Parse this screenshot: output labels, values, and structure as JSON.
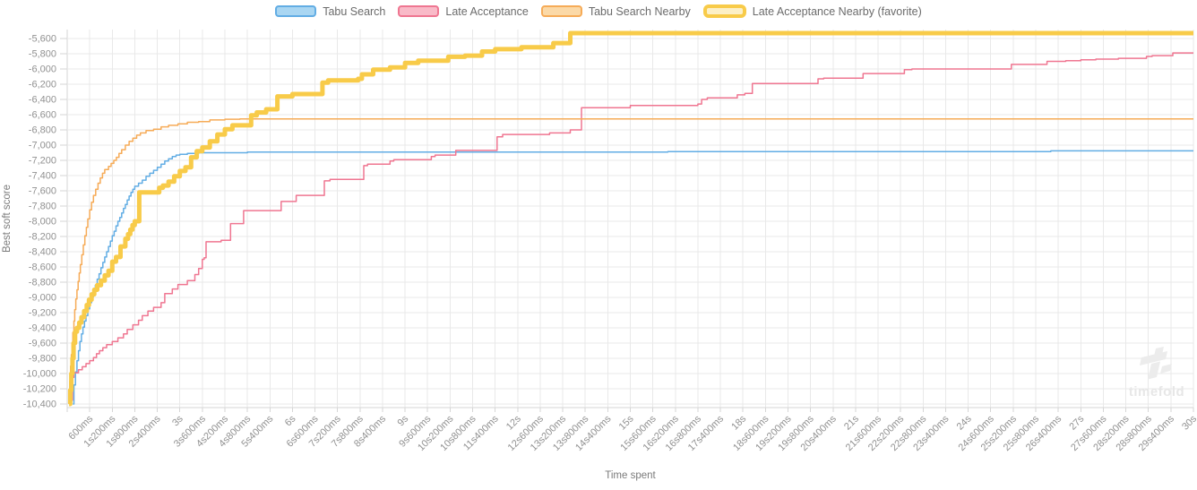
{
  "watermark": {
    "text": "timefold"
  },
  "colors": {
    "grid": "#e9e9e9",
    "axis": "#d6d6d6",
    "tick_label": "#919191",
    "axis_title": "#7a7a7a",
    "legend_text": "#6b6b6b",
    "watermark": "#ececec"
  },
  "chart_data": {
    "type": "line",
    "step": true,
    "title": "",
    "xlabel": "Time spent",
    "ylabel": "Best soft score",
    "xlim_seconds": [
      0,
      30
    ],
    "ylim": [
      -10400,
      -5600
    ],
    "y_tick_step": 200,
    "x_tick_step_seconds": 0.6,
    "grid": true,
    "legend_position": "top",
    "x_tick_labels": [
      "600ms",
      "1s200ms",
      "1s800ms",
      "2s400ms",
      "3s",
      "3s600ms",
      "4s200ms",
      "4s800ms",
      "5s400ms",
      "6s",
      "6s600ms",
      "7s200ms",
      "7s800ms",
      "8s400ms",
      "9s",
      "9s600ms",
      "10s200ms",
      "10s800ms",
      "11s400ms",
      "12s",
      "12s600ms",
      "13s200ms",
      "13s800ms",
      "14s400ms",
      "15s",
      "15s600ms",
      "16s200ms",
      "16s800ms",
      "17s400ms",
      "18s",
      "18s600ms",
      "19s200ms",
      "19s800ms",
      "20s400ms",
      "21s",
      "21s600ms",
      "22s200ms",
      "22s800ms",
      "23s400ms",
      "24s",
      "24s600ms",
      "25s200ms",
      "25s800ms",
      "26s400ms",
      "27s",
      "27s600ms",
      "28s200ms",
      "28s800ms",
      "29s400ms",
      "30s"
    ],
    "series": [
      {
        "name": "Tabu Search",
        "slug": "tabu-search",
        "color": "#62ade4",
        "fill": "#a9d6f2",
        "line_width": 1.5,
        "favorite": false,
        "points": [
          [
            0.15,
            -10400
          ],
          [
            0.18,
            -10150
          ],
          [
            0.22,
            -9980
          ],
          [
            0.26,
            -9830
          ],
          [
            0.3,
            -9700
          ],
          [
            0.34,
            -9580
          ],
          [
            0.38,
            -9480
          ],
          [
            0.42,
            -9390
          ],
          [
            0.46,
            -9310
          ],
          [
            0.5,
            -9240
          ],
          [
            0.55,
            -9150
          ],
          [
            0.6,
            -9070
          ],
          [
            0.65,
            -8990
          ],
          [
            0.7,
            -8910
          ],
          [
            0.75,
            -8840
          ],
          [
            0.8,
            -8760
          ],
          [
            0.85,
            -8690
          ],
          [
            0.9,
            -8610
          ],
          [
            0.95,
            -8540
          ],
          [
            1.0,
            -8470
          ],
          [
            1.05,
            -8400
          ],
          [
            1.1,
            -8330
          ],
          [
            1.15,
            -8260
          ],
          [
            1.2,
            -8190
          ],
          [
            1.25,
            -8130
          ],
          [
            1.3,
            -8060
          ],
          [
            1.35,
            -8000
          ],
          [
            1.4,
            -7950
          ],
          [
            1.45,
            -7890
          ],
          [
            1.5,
            -7830
          ],
          [
            1.55,
            -7780
          ],
          [
            1.6,
            -7720
          ],
          [
            1.65,
            -7670
          ],
          [
            1.7,
            -7620
          ],
          [
            1.75,
            -7580
          ],
          [
            1.8,
            -7540
          ],
          [
            1.9,
            -7500
          ],
          [
            2.0,
            -7460
          ],
          [
            2.1,
            -7410
          ],
          [
            2.2,
            -7370
          ],
          [
            2.3,
            -7330
          ],
          [
            2.4,
            -7290
          ],
          [
            2.5,
            -7250
          ],
          [
            2.6,
            -7210
          ],
          [
            2.7,
            -7180
          ],
          [
            2.8,
            -7150
          ],
          [
            2.9,
            -7130
          ],
          [
            3.0,
            -7120
          ],
          [
            3.2,
            -7110
          ],
          [
            3.5,
            -7100
          ],
          [
            4.8,
            -7090
          ],
          [
            16.0,
            -7085
          ],
          [
            26.2,
            -7075
          ]
        ]
      },
      {
        "name": "Late Acceptance",
        "slug": "late-acceptance",
        "color": "#ef7691",
        "fill": "#f9bac8",
        "line_width": 1.5,
        "favorite": false,
        "points": [
          [
            0.1,
            -10350
          ],
          [
            0.14,
            -10050
          ],
          [
            0.18,
            -9990
          ],
          [
            0.3,
            -9950
          ],
          [
            0.4,
            -9910
          ],
          [
            0.5,
            -9870
          ],
          [
            0.6,
            -9830
          ],
          [
            0.7,
            -9790
          ],
          [
            0.78,
            -9740
          ],
          [
            0.86,
            -9700
          ],
          [
            0.95,
            -9660
          ],
          [
            1.05,
            -9620
          ],
          [
            1.2,
            -9580
          ],
          [
            1.35,
            -9530
          ],
          [
            1.5,
            -9480
          ],
          [
            1.6,
            -9420
          ],
          [
            1.75,
            -9360
          ],
          [
            1.9,
            -9300
          ],
          [
            2.0,
            -9240
          ],
          [
            2.15,
            -9180
          ],
          [
            2.3,
            -9130
          ],
          [
            2.5,
            -9070
          ],
          [
            2.6,
            -8950
          ],
          [
            2.8,
            -8890
          ],
          [
            2.95,
            -8830
          ],
          [
            3.2,
            -8780
          ],
          [
            3.4,
            -8700
          ],
          [
            3.5,
            -8620
          ],
          [
            3.6,
            -8500
          ],
          [
            3.65,
            -8480
          ],
          [
            3.7,
            -8270
          ],
          [
            4.1,
            -8250
          ],
          [
            4.35,
            -8030
          ],
          [
            4.7,
            -7860
          ],
          [
            5.7,
            -7740
          ],
          [
            6.1,
            -7660
          ],
          [
            6.85,
            -7470
          ],
          [
            7.0,
            -7450
          ],
          [
            7.9,
            -7270
          ],
          [
            8.0,
            -7250
          ],
          [
            8.6,
            -7210
          ],
          [
            8.7,
            -7190
          ],
          [
            9.7,
            -7150
          ],
          [
            9.8,
            -7130
          ],
          [
            10.35,
            -7070
          ],
          [
            11.45,
            -6890
          ],
          [
            11.6,
            -6860
          ],
          [
            12.85,
            -6840
          ],
          [
            13.4,
            -6800
          ],
          [
            13.7,
            -6510
          ],
          [
            15.0,
            -6480
          ],
          [
            16.8,
            -6460
          ],
          [
            16.9,
            -6400
          ],
          [
            17.05,
            -6380
          ],
          [
            17.85,
            -6340
          ],
          [
            18.05,
            -6320
          ],
          [
            18.25,
            -6190
          ],
          [
            20.0,
            -6130
          ],
          [
            20.15,
            -6120
          ],
          [
            21.2,
            -6060
          ],
          [
            22.3,
            -6010
          ],
          [
            22.5,
            -6000
          ],
          [
            25.15,
            -5940
          ],
          [
            26.1,
            -5900
          ],
          [
            26.6,
            -5890
          ],
          [
            27.0,
            -5880
          ],
          [
            27.4,
            -5870
          ],
          [
            28.0,
            -5860
          ],
          [
            28.75,
            -5835
          ],
          [
            28.9,
            -5825
          ],
          [
            29.45,
            -5790
          ]
        ]
      },
      {
        "name": "Tabu Search Nearby",
        "slug": "tabu-search-nearby",
        "color": "#f6ab57",
        "fill": "#fbd9a7",
        "line_width": 1.5,
        "favorite": false,
        "points": [
          [
            0.05,
            -10350
          ],
          [
            0.07,
            -10100
          ],
          [
            0.09,
            -9900
          ],
          [
            0.11,
            -9750
          ],
          [
            0.13,
            -9600
          ],
          [
            0.15,
            -9460
          ],
          [
            0.18,
            -9310
          ],
          [
            0.2,
            -9160
          ],
          [
            0.23,
            -9020
          ],
          [
            0.26,
            -8900
          ],
          [
            0.29,
            -8790
          ],
          [
            0.32,
            -8680
          ],
          [
            0.35,
            -8570
          ],
          [
            0.39,
            -8440
          ],
          [
            0.43,
            -8310
          ],
          [
            0.47,
            -8190
          ],
          [
            0.51,
            -8080
          ],
          [
            0.55,
            -7970
          ],
          [
            0.6,
            -7850
          ],
          [
            0.65,
            -7750
          ],
          [
            0.7,
            -7660
          ],
          [
            0.76,
            -7580
          ],
          [
            0.82,
            -7500
          ],
          [
            0.88,
            -7430
          ],
          [
            0.94,
            -7370
          ],
          [
            1.0,
            -7320
          ],
          [
            1.1,
            -7280
          ],
          [
            1.17,
            -7240
          ],
          [
            1.24,
            -7200
          ],
          [
            1.31,
            -7160
          ],
          [
            1.38,
            -7110
          ],
          [
            1.45,
            -7060
          ],
          [
            1.55,
            -7000
          ],
          [
            1.65,
            -6950
          ],
          [
            1.75,
            -6910
          ],
          [
            1.85,
            -6870
          ],
          [
            1.95,
            -6840
          ],
          [
            2.1,
            -6810
          ],
          [
            2.3,
            -6790
          ],
          [
            2.5,
            -6760
          ],
          [
            2.7,
            -6740
          ],
          [
            2.95,
            -6720
          ],
          [
            3.2,
            -6700
          ],
          [
            3.5,
            -6690
          ],
          [
            3.8,
            -6670
          ],
          [
            4.2,
            -6660
          ],
          [
            4.6,
            -6655
          ]
        ]
      },
      {
        "name": "Late Acceptance Nearby (favorite)",
        "slug": "late-acceptance-nearby-favorite",
        "color": "#f8cb49",
        "fill": "#fcf0c7",
        "line_width": 5,
        "favorite": true,
        "points": [
          [
            0.05,
            -10400
          ],
          [
            0.08,
            -10220
          ],
          [
            0.11,
            -10000
          ],
          [
            0.14,
            -9800
          ],
          [
            0.17,
            -9600
          ],
          [
            0.21,
            -9450
          ],
          [
            0.26,
            -9400
          ],
          [
            0.32,
            -9330
          ],
          [
            0.38,
            -9260
          ],
          [
            0.45,
            -9180
          ],
          [
            0.52,
            -9100
          ],
          [
            0.58,
            -9030
          ],
          [
            0.65,
            -8960
          ],
          [
            0.72,
            -8900
          ],
          [
            0.8,
            -8840
          ],
          [
            0.9,
            -8780
          ],
          [
            1.0,
            -8710
          ],
          [
            1.1,
            -8650
          ],
          [
            1.2,
            -8530
          ],
          [
            1.3,
            -8470
          ],
          [
            1.42,
            -8330
          ],
          [
            1.55,
            -8230
          ],
          [
            1.62,
            -8170
          ],
          [
            1.68,
            -8110
          ],
          [
            1.74,
            -8050
          ],
          [
            1.8,
            -8000
          ],
          [
            1.92,
            -7620
          ],
          [
            2.45,
            -7560
          ],
          [
            2.55,
            -7530
          ],
          [
            2.7,
            -7480
          ],
          [
            2.85,
            -7410
          ],
          [
            3.0,
            -7340
          ],
          [
            3.15,
            -7290
          ],
          [
            3.3,
            -7160
          ],
          [
            3.45,
            -7080
          ],
          [
            3.6,
            -7030
          ],
          [
            3.8,
            -6950
          ],
          [
            4.0,
            -6860
          ],
          [
            4.2,
            -6790
          ],
          [
            4.4,
            -6740
          ],
          [
            4.9,
            -6610
          ],
          [
            5.05,
            -6570
          ],
          [
            5.3,
            -6530
          ],
          [
            5.6,
            -6360
          ],
          [
            6.0,
            -6330
          ],
          [
            6.8,
            -6180
          ],
          [
            6.95,
            -6150
          ],
          [
            7.75,
            -6130
          ],
          [
            7.85,
            -6070
          ],
          [
            8.15,
            -6010
          ],
          [
            8.6,
            -5980
          ],
          [
            9.0,
            -5920
          ],
          [
            9.35,
            -5890
          ],
          [
            10.15,
            -5840
          ],
          [
            10.6,
            -5825
          ],
          [
            11.05,
            -5770
          ],
          [
            11.4,
            -5740
          ],
          [
            12.1,
            -5715
          ],
          [
            12.95,
            -5660
          ],
          [
            13.4,
            -5530
          ]
        ]
      }
    ]
  }
}
